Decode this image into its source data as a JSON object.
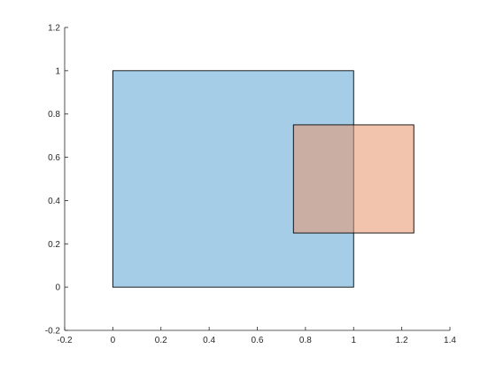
{
  "chart_data": {
    "type": "area",
    "title": "",
    "xlabel": "",
    "ylabel": "",
    "xlim": [
      -0.2,
      1.4
    ],
    "ylim": [
      -0.2,
      1.2
    ],
    "grid": false,
    "legend": "none",
    "xticks": [
      -0.2,
      0,
      0.2,
      0.4,
      0.6,
      0.8,
      1,
      1.2,
      1.4
    ],
    "yticks": [
      -0.2,
      0,
      0.2,
      0.4,
      0.6,
      0.8,
      1,
      1.2
    ],
    "xtick_labels": [
      "-0.2",
      "0",
      "0.2",
      "0.4",
      "0.6",
      "0.8",
      "1",
      "1.2",
      "1.4"
    ],
    "ytick_labels": [
      "-0.2",
      "0",
      "0.2",
      "0.4",
      "0.6",
      "0.8",
      "1",
      "1.2"
    ],
    "series": [
      {
        "color": "#a6cde8",
        "opacity": 1.0,
        "x": [
          0,
          1,
          1,
          0
        ],
        "y": [
          0,
          0,
          1,
          1
        ]
      },
      {
        "color": "#e8936a",
        "opacity": 0.55,
        "x": [
          0.75,
          1.25,
          1.25,
          0.75
        ],
        "y": [
          0.25,
          0.25,
          0.75,
          0.75
        ]
      }
    ]
  }
}
